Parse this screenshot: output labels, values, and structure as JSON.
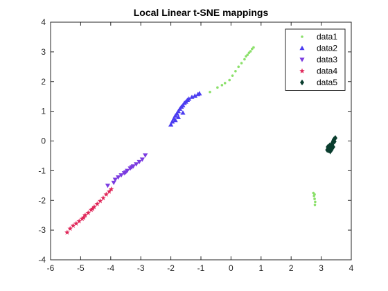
{
  "chart_data": {
    "type": "scatter",
    "title": "Local Linear t-SNE mappings",
    "xlabel": "",
    "ylabel": "",
    "xlim": [
      -6,
      4
    ],
    "ylim": [
      -4,
      4
    ],
    "xticks": [
      -6,
      -5,
      -4,
      -3,
      -2,
      -1,
      0,
      1,
      2,
      3,
      4
    ],
    "yticks": [
      -4,
      -3,
      -2,
      -1,
      0,
      1,
      2,
      3,
      4
    ],
    "grid": false,
    "legend_position": "top-right",
    "series": [
      {
        "name": "data1",
        "marker": "point",
        "color": "#8be06a",
        "points": [
          [
            -0.7,
            1.65
          ],
          [
            -0.45,
            1.8
          ],
          [
            -0.3,
            1.88
          ],
          [
            -0.2,
            1.95
          ],
          [
            -0.05,
            2.05
          ],
          [
            0.05,
            2.2
          ],
          [
            0.15,
            2.35
          ],
          [
            0.25,
            2.5
          ],
          [
            0.35,
            2.62
          ],
          [
            0.45,
            2.75
          ],
          [
            0.5,
            2.85
          ],
          [
            0.55,
            2.9
          ],
          [
            0.6,
            2.97
          ],
          [
            0.65,
            3.02
          ],
          [
            0.7,
            3.1
          ],
          [
            0.75,
            3.15
          ],
          [
            2.74,
            -1.75
          ],
          [
            2.76,
            -1.85
          ],
          [
            2.78,
            -1.95
          ],
          [
            2.8,
            -2.05
          ],
          [
            2.79,
            -2.15
          ],
          [
            2.78,
            -1.8
          ]
        ]
      },
      {
        "name": "data2",
        "marker": "triangle-up",
        "color": "#4b3cf0",
        "points": [
          [
            -2.0,
            0.55
          ],
          [
            -1.95,
            0.65
          ],
          [
            -1.9,
            0.75
          ],
          [
            -1.85,
            0.85
          ],
          [
            -1.8,
            0.92
          ],
          [
            -1.75,
            1.0
          ],
          [
            -1.7,
            1.08
          ],
          [
            -1.65,
            1.15
          ],
          [
            -1.6,
            1.2
          ],
          [
            -1.55,
            1.28
          ],
          [
            -1.5,
            1.32
          ],
          [
            -1.45,
            1.38
          ],
          [
            -1.4,
            1.42
          ],
          [
            -1.3,
            1.48
          ],
          [
            -1.2,
            1.52
          ],
          [
            -1.1,
            1.57
          ],
          [
            -1.05,
            1.6
          ],
          [
            -1.75,
            0.8
          ],
          [
            -1.6,
            0.95
          ],
          [
            -1.85,
            0.7
          ]
        ]
      },
      {
        "name": "data3",
        "marker": "triangle-down",
        "color": "#7b3be0",
        "points": [
          [
            -4.1,
            -1.5
          ],
          [
            -3.9,
            -1.4
          ],
          [
            -3.85,
            -1.3
          ],
          [
            -3.75,
            -1.22
          ],
          [
            -3.65,
            -1.15
          ],
          [
            -3.55,
            -1.08
          ],
          [
            -3.45,
            -1.0
          ],
          [
            -3.35,
            -0.92
          ],
          [
            -3.25,
            -0.85
          ],
          [
            -3.15,
            -0.78
          ],
          [
            -3.05,
            -0.7
          ],
          [
            -2.95,
            -0.62
          ],
          [
            -2.85,
            -0.48
          ],
          [
            -3.5,
            -1.05
          ],
          [
            -3.3,
            -0.88
          ]
        ]
      },
      {
        "name": "data4",
        "marker": "star",
        "color": "#e0285a",
        "points": [
          [
            -5.45,
            -3.08
          ],
          [
            -5.35,
            -2.95
          ],
          [
            -5.25,
            -2.85
          ],
          [
            -5.15,
            -2.78
          ],
          [
            -5.05,
            -2.7
          ],
          [
            -4.95,
            -2.62
          ],
          [
            -4.85,
            -2.5
          ],
          [
            -4.75,
            -2.42
          ],
          [
            -4.65,
            -2.32
          ],
          [
            -4.55,
            -2.22
          ],
          [
            -4.45,
            -2.12
          ],
          [
            -4.35,
            -2.02
          ],
          [
            -4.25,
            -1.92
          ],
          [
            -4.15,
            -1.8
          ],
          [
            -4.05,
            -1.7
          ],
          [
            -3.98,
            -1.62
          ],
          [
            -4.9,
            -2.58
          ],
          [
            -4.6,
            -2.28
          ]
        ]
      },
      {
        "name": "data5",
        "marker": "diamond",
        "color": "#0a3d2e",
        "points": [
          [
            3.2,
            -0.3
          ],
          [
            3.25,
            -0.32
          ],
          [
            3.3,
            -0.28
          ],
          [
            3.22,
            -0.2
          ],
          [
            3.28,
            -0.15
          ],
          [
            3.32,
            -0.22
          ],
          [
            3.35,
            -0.1
          ],
          [
            3.38,
            -0.05
          ],
          [
            3.4,
            0.0
          ],
          [
            3.42,
            0.05
          ],
          [
            3.45,
            0.08
          ],
          [
            3.47,
            0.1
          ],
          [
            3.36,
            -0.12
          ],
          [
            3.26,
            -0.25
          ],
          [
            3.3,
            -0.35
          ],
          [
            3.4,
            -0.2
          ],
          [
            3.44,
            -0.02
          ],
          [
            3.34,
            -0.3
          ]
        ]
      }
    ]
  }
}
